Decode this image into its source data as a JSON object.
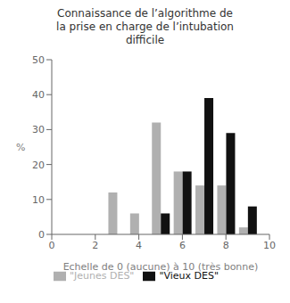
{
  "chart_data": {
    "type": "bar",
    "title": "Connaissance de l’algorithme de\nla prise en charge de l’intubation\ndifficile",
    "xlabel": "Echelle de 0 (aucune) à 10 (très bonne)",
    "ylabel": "%",
    "x": [
      3,
      4,
      5,
      6,
      7,
      8,
      9
    ],
    "series": [
      {
        "name": "\"Jeunes DES\"",
        "color": "#b0b0b0",
        "values": [
          12,
          6,
          32,
          18,
          14,
          14,
          2
        ]
      },
      {
        "name": "\"Vieux DES\"",
        "color": "#111111",
        "values": [
          null,
          null,
          6,
          18,
          39,
          29,
          8
        ]
      }
    ],
    "xlim": [
      0,
      10
    ],
    "xticks": [
      0,
      2,
      4,
      6,
      8,
      10
    ],
    "ylim": [
      0,
      50
    ],
    "yticks": [
      0,
      10,
      20,
      30,
      40,
      50
    ],
    "grid": false,
    "legend": "bottom"
  }
}
